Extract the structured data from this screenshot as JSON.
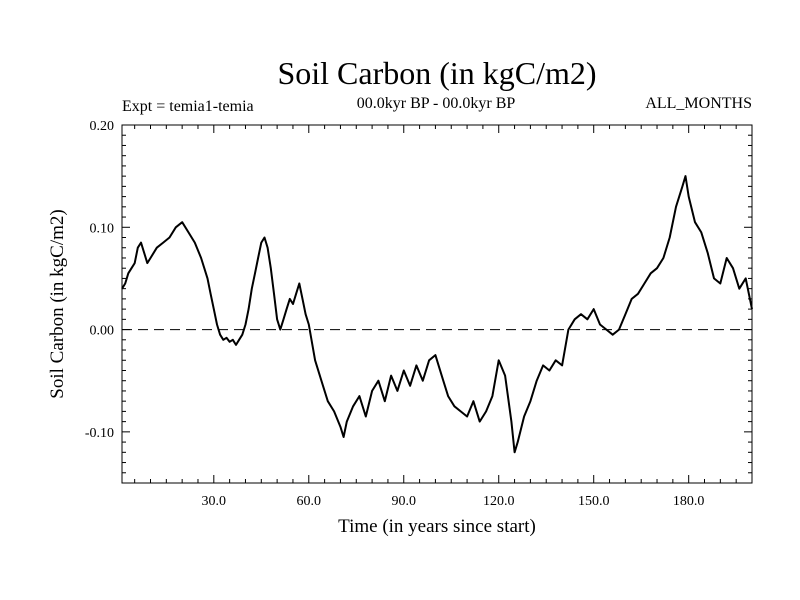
{
  "chart_data": {
    "type": "line",
    "title": "Soil Carbon (in kgC/m2)",
    "subtitle_left": "Expt = temia1-temia",
    "subtitle_center": "00.0kyr BP - 00.0kyr BP",
    "subtitle_right": "ALL_MONTHS",
    "xlabel": "Time (in years since start)",
    "ylabel": "Soil Carbon (in kgC/m2)",
    "xlim": [
      1,
      200
    ],
    "ylim": [
      -0.15,
      0.2
    ],
    "xticks": [
      30,
      60,
      90,
      120,
      150,
      180
    ],
    "xtick_labels": [
      "30.0",
      "60.0",
      "90.0",
      "120.0",
      "150.0",
      "180.0"
    ],
    "yticks": [
      0.2,
      0.1,
      0.0,
      -0.1
    ],
    "ytick_labels": [
      "0.20",
      "0.10",
      "0.00",
      "-0.10"
    ],
    "reference_line": {
      "y": 0.0,
      "style": "dashed"
    },
    "series": [
      {
        "name": "Soil Carbon",
        "color": "#000000",
        "x": [
          1,
          2,
          3,
          4,
          5,
          6,
          7,
          8,
          9,
          10,
          12,
          14,
          16,
          18,
          20,
          22,
          24,
          26,
          27,
          28,
          29,
          30,
          31,
          32,
          33,
          34,
          35,
          36,
          37,
          38,
          39,
          40,
          41,
          42,
          43,
          44,
          45,
          46,
          47,
          48,
          49,
          50,
          51,
          52,
          53,
          54,
          55,
          56,
          57,
          58,
          59,
          60,
          62,
          64,
          66,
          68,
          70,
          71,
          72,
          74,
          76,
          78,
          80,
          82,
          84,
          86,
          88,
          90,
          92,
          94,
          96,
          98,
          100,
          102,
          104,
          106,
          108,
          110,
          112,
          114,
          116,
          118,
          120,
          122,
          124,
          125,
          126,
          128,
          130,
          132,
          134,
          136,
          138,
          140,
          142,
          144,
          146,
          148,
          150,
          152,
          154,
          156,
          158,
          160,
          162,
          164,
          166,
          168,
          170,
          172,
          174,
          176,
          178,
          179,
          180,
          182,
          184,
          186,
          188,
          190,
          192,
          194,
          196,
          198,
          200
        ],
        "values": [
          0.04,
          0.045,
          0.055,
          0.06,
          0.065,
          0.08,
          0.085,
          0.075,
          0.065,
          0.07,
          0.08,
          0.085,
          0.09,
          0.1,
          0.105,
          0.095,
          0.085,
          0.07,
          0.06,
          0.05,
          0.035,
          0.02,
          0.005,
          -0.005,
          -0.01,
          -0.008,
          -0.012,
          -0.01,
          -0.015,
          -0.01,
          -0.005,
          0.005,
          0.02,
          0.04,
          0.055,
          0.07,
          0.085,
          0.09,
          0.08,
          0.06,
          0.035,
          0.01,
          0.0,
          0.01,
          0.02,
          0.03,
          0.025,
          0.035,
          0.045,
          0.03,
          0.015,
          0.005,
          -0.03,
          -0.05,
          -0.07,
          -0.08,
          -0.095,
          -0.105,
          -0.09,
          -0.075,
          -0.065,
          -0.085,
          -0.06,
          -0.05,
          -0.07,
          -0.045,
          -0.06,
          -0.04,
          -0.055,
          -0.035,
          -0.05,
          -0.03,
          -0.025,
          -0.045,
          -0.065,
          -0.075,
          -0.08,
          -0.085,
          -0.07,
          -0.09,
          -0.08,
          -0.065,
          -0.03,
          -0.045,
          -0.09,
          -0.12,
          -0.11,
          -0.085,
          -0.07,
          -0.05,
          -0.035,
          -0.04,
          -0.03,
          -0.035,
          0.0,
          0.01,
          0.015,
          0.01,
          0.02,
          0.005,
          0.0,
          -0.005,
          0.0,
          0.015,
          0.03,
          0.035,
          0.045,
          0.055,
          0.06,
          0.07,
          0.09,
          0.12,
          0.14,
          0.15,
          0.13,
          0.105,
          0.095,
          0.075,
          0.05,
          0.045,
          0.07,
          0.06,
          0.04,
          0.05,
          0.02
        ]
      }
    ]
  }
}
